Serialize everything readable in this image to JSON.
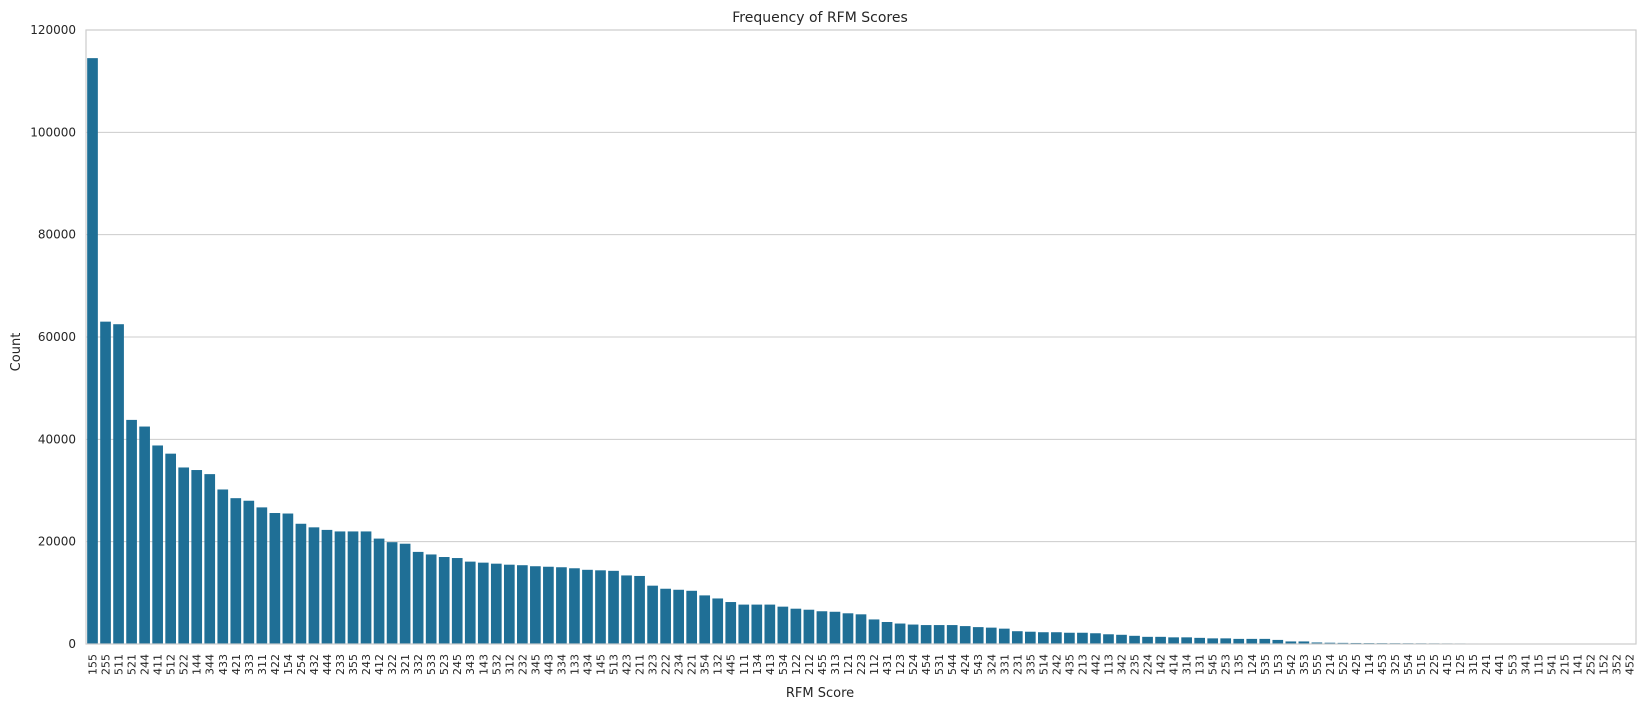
{
  "chart_data": {
    "type": "bar",
    "title": "Frequency of RFM Scores",
    "xlabel": "RFM Score",
    "ylabel": "Count",
    "ylim": [
      0,
      120000
    ],
    "yticks": [
      0,
      20000,
      40000,
      60000,
      80000,
      100000,
      120000
    ],
    "grid": "horizontal",
    "bar_color": "#1f6f96",
    "categories": [
      "155",
      "255",
      "511",
      "521",
      "244",
      "411",
      "512",
      "522",
      "144",
      "344",
      "433",
      "421",
      "333",
      "311",
      "422",
      "154",
      "254",
      "432",
      "444",
      "233",
      "355",
      "243",
      "412",
      "322",
      "321",
      "332",
      "533",
      "523",
      "245",
      "343",
      "143",
      "532",
      "312",
      "232",
      "345",
      "443",
      "334",
      "133",
      "434",
      "145",
      "513",
      "423",
      "211",
      "323",
      "222",
      "234",
      "221",
      "354",
      "132",
      "445",
      "111",
      "134",
      "413",
      "534",
      "122",
      "212",
      "455",
      "313",
      "121",
      "223",
      "112",
      "431",
      "123",
      "524",
      "454",
      "531",
      "544",
      "424",
      "543",
      "324",
      "331",
      "231",
      "335",
      "514",
      "242",
      "435",
      "213",
      "442",
      "113",
      "342",
      "235",
      "224",
      "142",
      "414",
      "314",
      "131",
      "545",
      "253",
      "135",
      "124",
      "535",
      "153",
      "542",
      "353",
      "555",
      "214",
      "525",
      "425",
      "114",
      "453",
      "325",
      "554",
      "515",
      "225",
      "415",
      "125",
      "315",
      "241",
      "441",
      "553",
      "341",
      "115",
      "541",
      "215",
      "141",
      "252",
      "152",
      "352",
      "452"
    ],
    "values": [
      114500,
      63000,
      62500,
      43800,
      42500,
      38800,
      37200,
      34500,
      34000,
      33200,
      30200,
      28500,
      28000,
      26700,
      25600,
      25500,
      23500,
      22800,
      22300,
      22000,
      22000,
      22000,
      20600,
      19900,
      19600,
      18000,
      17500,
      17000,
      16800,
      16100,
      15900,
      15700,
      15500,
      15400,
      15200,
      15100,
      15000,
      14800,
      14500,
      14400,
      14300,
      13400,
      13300,
      11400,
      10800,
      10600,
      10400,
      9500,
      8900,
      8200,
      7700,
      7700,
      7700,
      7300,
      6900,
      6700,
      6400,
      6300,
      6000,
      5800,
      4800,
      4300,
      4000,
      3800,
      3700,
      3700,
      3700,
      3500,
      3300,
      3200,
      3000,
      2500,
      2400,
      2300,
      2300,
      2200,
      2200,
      2100,
      1900,
      1800,
      1600,
      1400,
      1400,
      1300,
      1300,
      1200,
      1100,
      1100,
      1000,
      1000,
      1000,
      800,
      500,
      500,
      300,
      250,
      220,
      200,
      180,
      170,
      160,
      150,
      140,
      130,
      120,
      110,
      100,
      90,
      80,
      70,
      60,
      50,
      40,
      35,
      30,
      25,
      20,
      15,
      10
    ]
  }
}
